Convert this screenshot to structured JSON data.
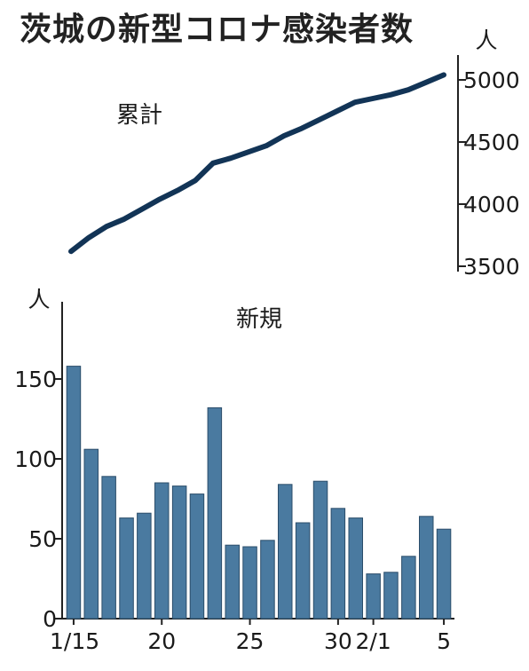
{
  "title": "茨城の新型コロナ感染者数",
  "colors": {
    "line": "#123456",
    "bar": "#4a7aa0",
    "bar_stroke": "#2b4d6a",
    "axis": "#222222"
  },
  "chart_data": [
    {
      "type": "line",
      "series_label": "累計",
      "unit": "人",
      "y_axis_position": "right",
      "ylim": [
        3500,
        5000
      ],
      "yticks": [
        3500,
        4000,
        4500,
        5000
      ],
      "x": [
        "1/15",
        "1/16",
        "1/17",
        "1/18",
        "1/19",
        "1/20",
        "1/21",
        "1/22",
        "1/23",
        "1/24",
        "1/25",
        "1/26",
        "1/27",
        "1/28",
        "1/29",
        "1/30",
        "1/31",
        "2/1",
        "2/2",
        "2/3",
        "2/4",
        "2/5"
      ],
      "values": [
        3620,
        3730,
        3820,
        3880,
        3960,
        4040,
        4110,
        4190,
        4330,
        4370,
        4420,
        4470,
        4550,
        4610,
        4680,
        4750,
        4820,
        4850,
        4880,
        4920,
        4980,
        5040
      ]
    },
    {
      "type": "bar",
      "series_label": "新規",
      "unit": "人",
      "y_axis_position": "left",
      "ylim": [
        0,
        160
      ],
      "yticks": [
        0,
        50,
        100,
        150
      ],
      "categories": [
        "1/15",
        "1/16",
        "1/17",
        "1/18",
        "1/19",
        "1/20",
        "1/21",
        "1/22",
        "1/23",
        "1/24",
        "1/25",
        "1/26",
        "1/27",
        "1/28",
        "1/29",
        "1/30",
        "1/31",
        "2/1",
        "2/2",
        "2/3",
        "2/4",
        "2/5"
      ],
      "values": [
        158,
        106,
        89,
        63,
        66,
        85,
        83,
        78,
        132,
        46,
        45,
        49,
        84,
        60,
        86,
        69,
        63,
        28,
        29,
        39,
        64,
        56
      ],
      "x_tick_labels": [
        {
          "index": 0,
          "label": "1/15"
        },
        {
          "index": 5,
          "label": "20"
        },
        {
          "index": 10,
          "label": "25"
        },
        {
          "index": 15,
          "label": "30"
        },
        {
          "index": 17,
          "label": "2/1"
        },
        {
          "index": 21,
          "label": "5"
        }
      ]
    }
  ]
}
